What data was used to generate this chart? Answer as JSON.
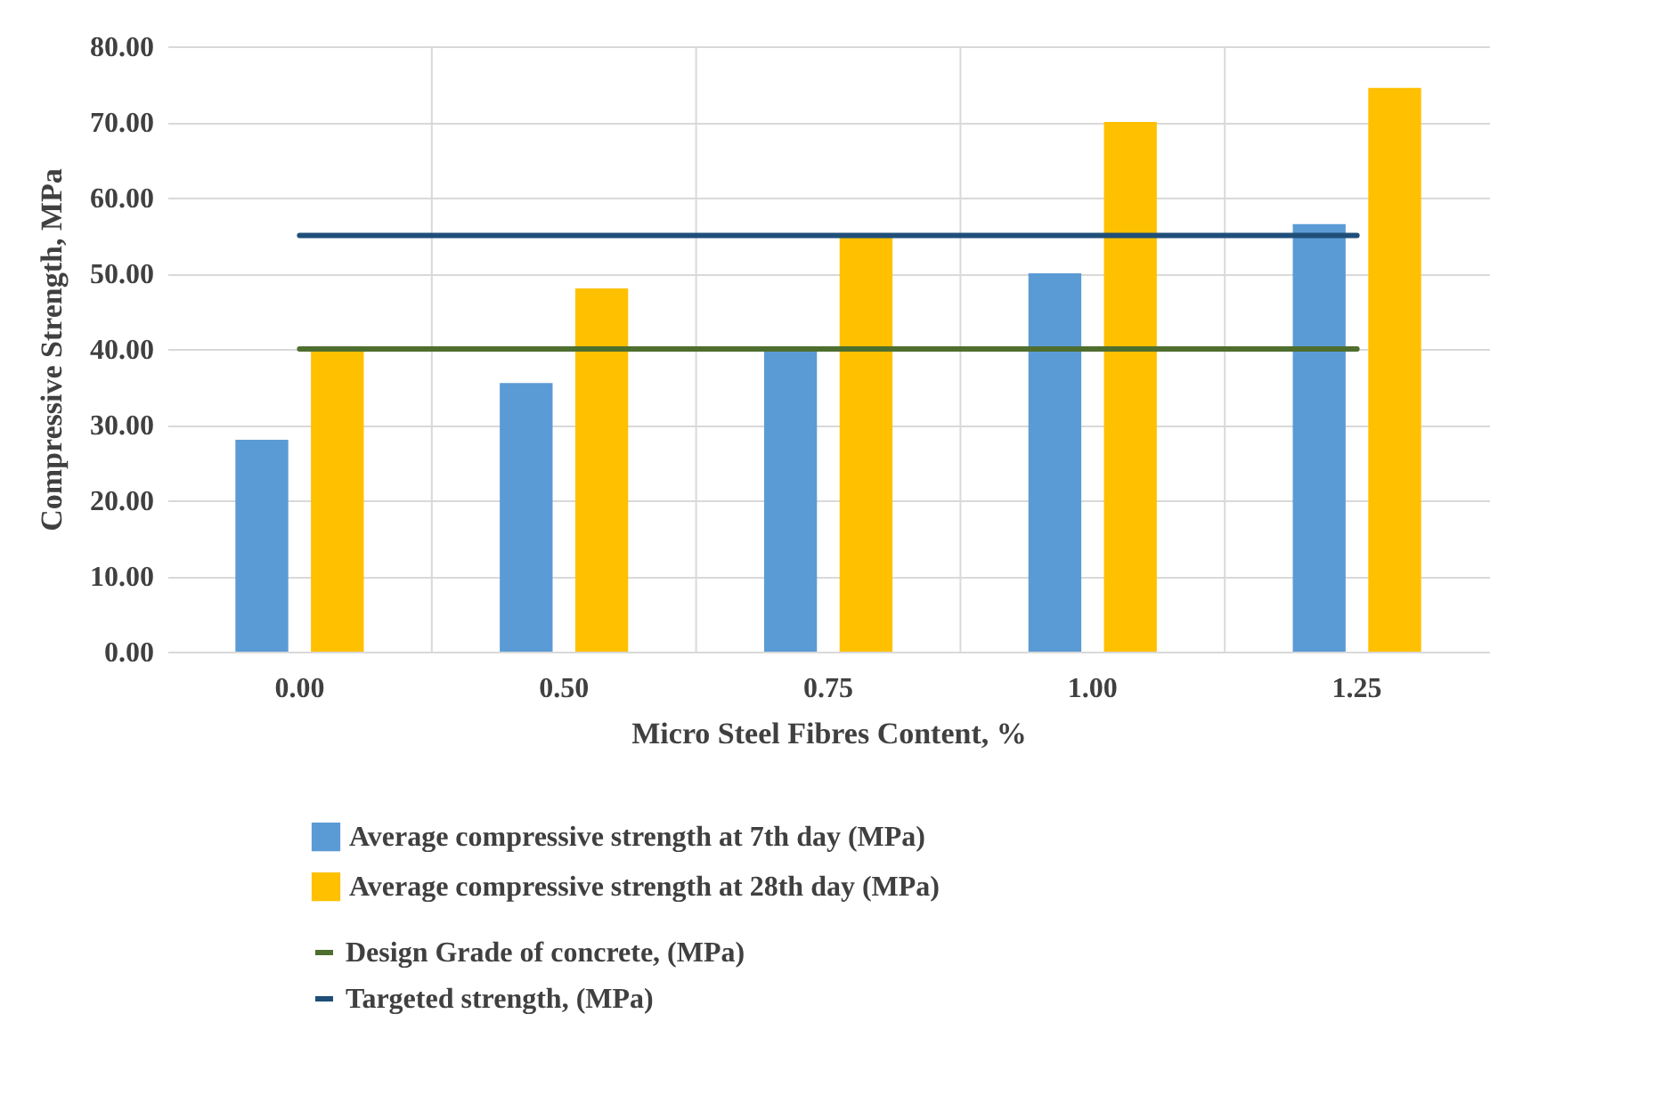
{
  "chart_data": {
    "type": "bar",
    "xlabel": "Micro Steel Fibres Content, %",
    "ylabel": "Compressive Strength, MPa",
    "categories": [
      "0.00",
      "0.50",
      "0.75",
      "1.00",
      "1.25"
    ],
    "series": [
      {
        "name": "Average compressive strength at 7th day (MPa)",
        "color": "#5b9bd5",
        "values": [
          28,
          35.5,
          40,
          50,
          56.5
        ]
      },
      {
        "name": "Average compressive strength at 28th day (MPa)",
        "color": "#ffc000",
        "values": [
          40,
          48,
          55,
          70,
          74.5
        ]
      },
      {
        "name": "Design Grade of concrete, (MPa)",
        "type": "line",
        "color": "#4e6e2e",
        "values": [
          40,
          40,
          40,
          40,
          40
        ]
      },
      {
        "name": "Targeted strength, (MPa)",
        "type": "line",
        "color": "#1f4e79",
        "values": [
          55,
          55,
          55,
          55,
          55
        ]
      }
    ],
    "ylim": [
      0,
      80
    ],
    "yticks": [
      {
        "value": 0,
        "label": "0.00"
      },
      {
        "value": 10,
        "label": "10.00"
      },
      {
        "value": 20,
        "label": "20.00"
      },
      {
        "value": 30,
        "label": "30.00"
      },
      {
        "value": 40,
        "label": "40.00"
      },
      {
        "value": 50,
        "label": "50.00"
      },
      {
        "value": 60,
        "label": "60.00"
      },
      {
        "value": 70,
        "label": "70.00"
      },
      {
        "value": 80,
        "label": "80.00"
      }
    ],
    "grid": true,
    "legend": "bottom"
  }
}
